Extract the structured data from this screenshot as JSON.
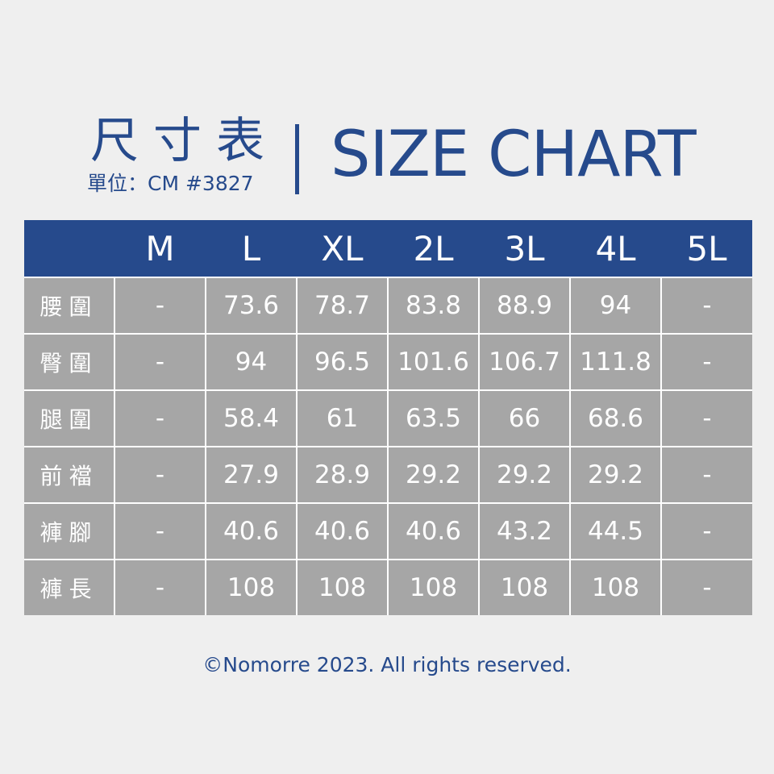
{
  "title_zh": "尺寸表",
  "unit": "單位：CM #3827",
  "title_en": "SIZE CHART",
  "colors": {
    "brand": "#264a8c",
    "cell": "#a6a6a6",
    "background": "#efefef"
  },
  "table": {
    "headers": [
      "",
      "M",
      "L",
      "XL",
      "2L",
      "3L",
      "4L",
      "5L"
    ],
    "rows": [
      [
        "腰圍",
        "-",
        "73.6",
        "78.7",
        "83.8",
        "88.9",
        "94",
        "-"
      ],
      [
        "臀圍",
        "-",
        "94",
        "96.5",
        "101.6",
        "106.7",
        "111.8",
        "-"
      ],
      [
        "腿圍",
        "-",
        "58.4",
        "61",
        "63.5",
        "66",
        "68.6",
        "-"
      ],
      [
        "前襠",
        "-",
        "27.9",
        "28.9",
        "29.2",
        "29.2",
        "29.2",
        "-"
      ],
      [
        "褲腳",
        "-",
        "40.6",
        "40.6",
        "40.6",
        "43.2",
        "44.5",
        "-"
      ],
      [
        "褲長",
        "-",
        "108",
        "108",
        "108",
        "108",
        "108",
        "-"
      ]
    ]
  },
  "footer": "©Nomorre 2023. All rights reserved."
}
